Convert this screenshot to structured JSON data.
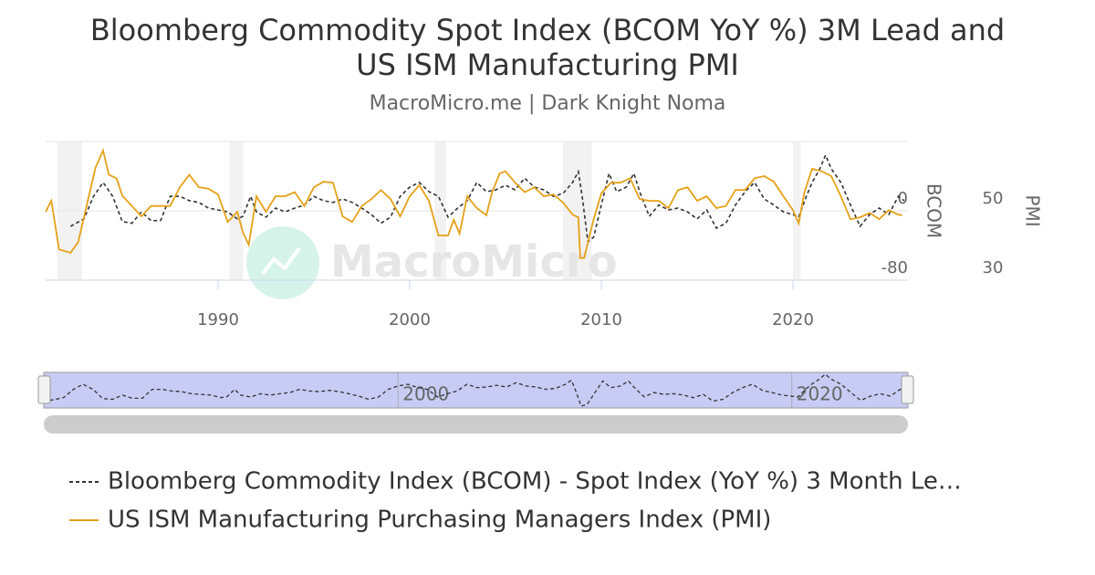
{
  "chart_data": {
    "type": "line",
    "title": "Bloomberg Commodity Spot Index (BCOM YoY %) 3M Lead and US ISM Manufacturing PMI",
    "subtitle": "MacroMicro.me | Dark Knight Noma",
    "watermark": "MacroMicro",
    "y_label": "BCOM",
    "y2_label": "PMI",
    "xlim": [
      1981,
      2026
    ],
    "xticks": [
      1990,
      2000,
      2010,
      2020
    ],
    "ylim": [
      -80,
      80
    ],
    "yticks": [
      -80,
      0
    ],
    "y2lim": [
      30,
      70
    ],
    "y2ticks": [
      30,
      50
    ],
    "grid": true,
    "legend": "bottom-left",
    "recessions": [
      [
        1981.6,
        1982.9
      ],
      [
        1990.6,
        1991.3
      ],
      [
        2001.3,
        2001.9
      ],
      [
        2008.0,
        2009.5
      ],
      [
        2020.0,
        2020.4
      ]
    ],
    "navigator": {
      "xlim": [
        1982.0,
        2025.9
      ],
      "xticks": [
        2000,
        2020
      ]
    },
    "series": [
      {
        "name": "Bloomberg Commodity Index (BCOM) - Spot Index (YoY %) 3 Month Le…",
        "color": "#333333",
        "dash": true,
        "axis": "y",
        "x": [
          1982.3,
          1983.0,
          1983.5,
          1984.0,
          1984.5,
          1985.0,
          1985.5,
          1986.0,
          1986.5,
          1987.0,
          1987.5,
          1988.0,
          1988.5,
          1989.0,
          1989.5,
          1990.0,
          1990.5,
          1991.0,
          1991.3,
          1991.7,
          1992.0,
          1992.5,
          1993.0,
          1993.5,
          1994.0,
          1994.5,
          1995.0,
          1995.5,
          1996.0,
          1996.5,
          1997.0,
          1997.5,
          1998.0,
          1998.5,
          1999.0,
          1999.5,
          2000.0,
          2000.5,
          2001.0,
          2001.5,
          2002.0,
          2002.5,
          2003.0,
          2003.5,
          2004.0,
          2004.5,
          2005.0,
          2005.5,
          2006.0,
          2006.5,
          2007.0,
          2007.5,
          2008.0,
          2008.5,
          2008.8,
          2009.0,
          2009.3,
          2009.6,
          2010.0,
          2010.4,
          2010.8,
          2011.3,
          2011.7,
          2012.0,
          2012.5,
          2013.0,
          2013.5,
          2014.0,
          2014.5,
          2015.0,
          2015.5,
          2016.0,
          2016.5,
          2017.0,
          2017.5,
          2018.0,
          2018.5,
          2019.0,
          2019.5,
          2020.0,
          2020.3,
          2020.7,
          2021.0,
          2021.4,
          2021.7,
          2022.0,
          2022.5,
          2023.0,
          2023.5,
          2024.0,
          2024.5,
          2025.0,
          2025.5,
          2025.8
        ],
        "values": [
          -17.9,
          -9.3,
          16.7,
          32.7,
          16.7,
          -12.3,
          -14.3,
          -1.3,
          -11.3,
          -11.3,
          16.7,
          16.7,
          11.7,
          9.7,
          3.2,
          1.1,
          -1.3,
          -9.3,
          -6.3,
          16.7,
          -1.3,
          -7.3,
          3.2,
          -1.3,
          3.2,
          6.7,
          16.7,
          11.7,
          9.7,
          13.7,
          9.7,
          3.2,
          -4.3,
          -14.3,
          -7.3,
          16.7,
          27.4,
          32.7,
          22.1,
          16.7,
          -7.3,
          3.2,
          11.7,
          32.7,
          22.1,
          24.2,
          29.5,
          24.2,
          37.7,
          27.4,
          24.2,
          16.7,
          20.0,
          32.7,
          45.3,
          16.7,
          -35.8,
          -30.3,
          6.7,
          43.2,
          22.1,
          27.4,
          43.2,
          22.1,
          -6.3,
          6.7,
          1.1,
          3.2,
          -1.3,
          -9.3,
          1.1,
          -20.0,
          -14.3,
          6.7,
          22.1,
          32.7,
          13.7,
          6.7,
          -1.3,
          -4.3,
          -7.3,
          16.7,
          32.7,
          48.4,
          64.2,
          48.4,
          32.7,
          6.7,
          -17.9,
          -4.3,
          3.2,
          -4.3,
          16.7,
          11.7
        ]
      },
      {
        "name": "US ISM Manufacturing Purchasing Managers Index (PMI)",
        "color": "#e6a118",
        "dash": false,
        "axis": "y2",
        "x": [
          1981.0,
          1981.3,
          1981.7,
          1982.3,
          1982.7,
          1983.2,
          1983.6,
          1984.0,
          1984.3,
          1984.7,
          1985.0,
          1985.5,
          1986.0,
          1986.5,
          1987.0,
          1987.5,
          1988.0,
          1988.5,
          1989.0,
          1989.5,
          1990.0,
          1990.5,
          1991.0,
          1991.3,
          1991.6,
          1992.0,
          1992.5,
          1993.0,
          1993.5,
          1994.0,
          1994.5,
          1995.0,
          1995.5,
          1996.0,
          1996.5,
          1997.0,
          1997.5,
          1998.0,
          1998.5,
          1999.0,
          1999.5,
          2000.0,
          2000.5,
          2001.0,
          2001.5,
          2002.0,
          2002.3,
          2002.6,
          2003.0,
          2003.5,
          2004.0,
          2004.3,
          2004.7,
          2005.0,
          2005.5,
          2006.0,
          2006.5,
          2007.0,
          2007.5,
          2008.0,
          2008.5,
          2008.8,
          2008.9,
          2009.1,
          2009.6,
          2010.0,
          2010.5,
          2011.0,
          2011.5,
          2012.0,
          2012.5,
          2013.0,
          2013.5,
          2014.0,
          2014.5,
          2015.0,
          2015.5,
          2016.0,
          2016.5,
          2017.0,
          2017.5,
          2018.0,
          2018.5,
          2019.0,
          2019.5,
          2020.0,
          2020.3,
          2020.6,
          2021.0,
          2021.5,
          2022.0,
          2022.5,
          2023.0,
          2023.5,
          2024.0,
          2024.5,
          2025.0,
          2025.5,
          2025.7
        ],
        "values": [
          49.7,
          52.9,
          38.9,
          37.9,
          41.0,
          52.9,
          62.4,
          67.4,
          60.4,
          59.4,
          54.4,
          51.4,
          48.4,
          51.4,
          51.4,
          51.4,
          56.8,
          60.4,
          56.8,
          56.4,
          54.7,
          46.8,
          49.7,
          43.7,
          40.2,
          54.2,
          49.7,
          54.2,
          54.2,
          55.4,
          51.4,
          56.8,
          58.4,
          58.1,
          48.4,
          46.8,
          51.4,
          53.4,
          56.0,
          53.4,
          48.4,
          54.2,
          57.4,
          52.9,
          42.9,
          42.9,
          47.4,
          43.4,
          54.2,
          50.8,
          48.7,
          55.4,
          60.8,
          61.4,
          58.1,
          55.4,
          56.8,
          54.2,
          54.7,
          52.4,
          48.9,
          48.1,
          36.4,
          36.4,
          47.6,
          55.0,
          58.1,
          58.1,
          59.4,
          53.4,
          52.9,
          52.9,
          50.8,
          56.0,
          56.8,
          52.9,
          54.2,
          50.8,
          51.4,
          56.0,
          56.0,
          59.4,
          60.0,
          58.4,
          54.2,
          50.2,
          46.4,
          55.4,
          62.1,
          61.4,
          60.0,
          54.2,
          47.6,
          48.1,
          49.4,
          47.6,
          50.2,
          48.9,
          48.7
        ]
      }
    ]
  }
}
